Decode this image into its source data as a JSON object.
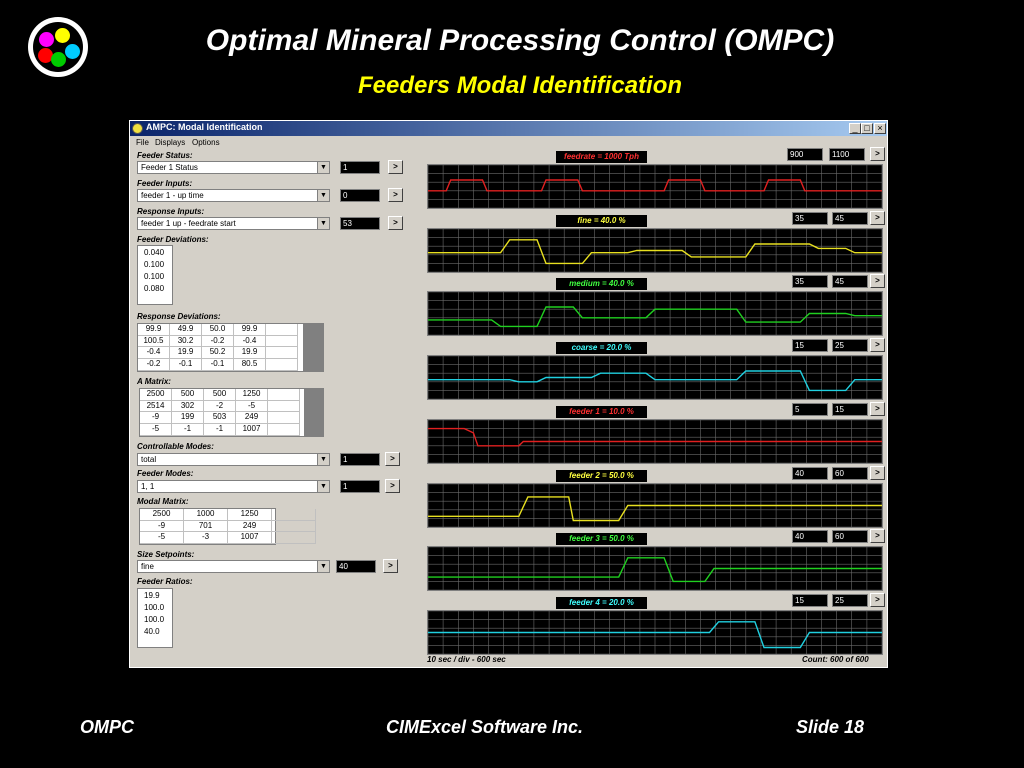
{
  "slide": {
    "title": "Optimal Mineral Processing Control (OMPC)",
    "subtitle": "Feeders Modal Identification",
    "footer_left": "OMPC",
    "footer_center": "CIMExcel Software Inc.",
    "footer_right": "Slide 18",
    "logo_colors": [
      "#ff00ff",
      "#ffff00",
      "#ff0000",
      "#00cc00",
      "#00ccff"
    ]
  },
  "window": {
    "title": "AMPC: Modal Identification",
    "minimize": "_",
    "maximize": "□",
    "close": "×",
    "menu": [
      "File",
      "Displays",
      "Options"
    ]
  },
  "left": {
    "feeder_status": {
      "label": "Feeder Status:",
      "combo": "Feeder 1 Status",
      "value": "1",
      "button": ">"
    },
    "feeder_inputs": {
      "label": "Feeder Inputs:",
      "combo": "feeder 1 - up time",
      "value": "0",
      "button": ">"
    },
    "response_inputs": {
      "label": "Response Inputs:",
      "combo": "feeder 1 up - feedrate start",
      "value": "53",
      "button": ">"
    },
    "feeder_deviations": {
      "label": "Feeder Deviations:",
      "values": [
        "0.040",
        "0.100",
        "0.100",
        "0.080"
      ]
    },
    "response_deviations": {
      "label": "Response Deviations:",
      "rows": [
        [
          "99.9",
          "49.9",
          "50.0",
          "99.9"
        ],
        [
          "100.5",
          "30.2",
          "-0.2",
          "-0.4"
        ],
        [
          "-0.4",
          "19.9",
          "50.2",
          "19.9"
        ],
        [
          "-0.2",
          "-0.1",
          "-0.1",
          "80.5"
        ]
      ]
    },
    "a_matrix": {
      "label": "A Matrix:",
      "rows": [
        [
          "2500",
          "500",
          "500",
          "1250"
        ],
        [
          "2514",
          "302",
          "-2",
          "-5"
        ],
        [
          "-9",
          "199",
          "503",
          "249"
        ],
        [
          "-5",
          "-1",
          "-1",
          "1007"
        ]
      ]
    },
    "controllable_modes": {
      "label": "Controllable Modes:",
      "combo": "total",
      "value": "1",
      "button": ">"
    },
    "feeder_modes": {
      "label": "Feeder Modes:",
      "combo": "1, 1",
      "value": "1",
      "button": ">"
    },
    "modal_matrix": {
      "label": "Modal Matrix:",
      "rows": [
        [
          "2500",
          "1000",
          "1250"
        ],
        [
          "-9",
          "701",
          "249"
        ],
        [
          "-5",
          "-3",
          "1007"
        ]
      ]
    },
    "size_setpoints": {
      "label": "Size Setpoints:",
      "combo": "fine",
      "value": "40",
      "button": ">"
    },
    "feeder_ratios": {
      "label": "Feeder Ratios:",
      "values": [
        "19.9",
        "100.0",
        "100.0",
        "40.0"
      ]
    }
  },
  "trends": [
    {
      "title": "feedrate = 1000 Tph",
      "color": "#e02020",
      "title_color": "#ff3030",
      "min": "900",
      "max": "1100",
      "button": ">"
    },
    {
      "title": "fine = 40.0 %",
      "color": "#e8e020",
      "title_color": "#ffff40",
      "min": "35",
      "max": "45",
      "button": ">"
    },
    {
      "title": "medium = 40.0 %",
      "color": "#20d020",
      "title_color": "#40ff40",
      "min": "35",
      "max": "45",
      "button": ">"
    },
    {
      "title": "coarse = 20.0 %",
      "color": "#20d0e0",
      "title_color": "#40ffff",
      "min": "15",
      "max": "25",
      "button": ">"
    },
    {
      "title": "feeder 1 = 10.0 %",
      "color": "#e02020",
      "title_color": "#ff3030",
      "min": "5",
      "max": "15",
      "button": ">"
    },
    {
      "title": "feeder 2 = 50.0 %",
      "color": "#e8e020",
      "title_color": "#ffff40",
      "min": "40",
      "max": "60",
      "button": ">"
    },
    {
      "title": "feeder 3 = 50.0 %",
      "color": "#20d020",
      "title_color": "#40ff40",
      "min": "40",
      "max": "60",
      "button": ">"
    },
    {
      "title": "feeder 4 = 20.0 %",
      "color": "#20d0e0",
      "title_color": "#40ffff",
      "min": "15",
      "max": "25",
      "button": ">"
    }
  ],
  "status": {
    "time_scale": "10 sec / div  -  600 sec",
    "count": "Count:  600  of  600"
  }
}
